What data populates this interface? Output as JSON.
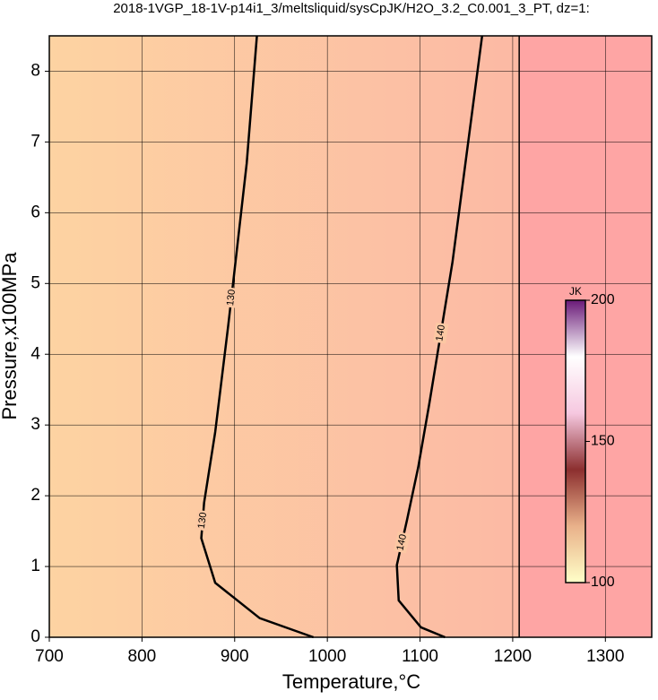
{
  "chart_data": {
    "type": "contour",
    "title": "2018-1VGP_18-1V-p14i1_3/meltsliquid/sysCpJK/H2O_3.2_C0.001_3_PT, dz=1:",
    "x_label": "Temperature,°C",
    "y_label": "Pressure,x100MPa",
    "xlim": [
      700,
      1350
    ],
    "ylim": [
      0,
      8.5
    ],
    "xticks": [
      700,
      800,
      900,
      1000,
      1100,
      1200,
      1300
    ],
    "yticks": [
      0,
      1,
      2,
      3,
      4,
      5,
      6,
      7,
      8
    ],
    "grid": true,
    "series": [
      {
        "level": 130,
        "color": "#000000",
        "x": [
          985,
          927,
          879,
          864,
          867,
          879,
          893,
          900,
          913,
          924
        ],
        "y": [
          0,
          0.27,
          0.77,
          1.4,
          1.9,
          2.9,
          4.4,
          5.2,
          6.7,
          8.5
        ]
      },
      {
        "level": 140,
        "color": "#000000",
        "x": [
          1127,
          1101,
          1077,
          1075,
          1086,
          1098,
          1110,
          1135,
          1149,
          1167
        ],
        "y": [
          0,
          0.14,
          0.52,
          1.02,
          1.66,
          2.4,
          3.3,
          5.3,
          6.7,
          8.5
        ]
      },
      {
        "color": "#000000",
        "x": [
          1207,
          1207
        ],
        "y": [
          0,
          8.5
        ]
      }
    ],
    "colorbar": {
      "label": "JK",
      "lim": [
        100,
        200
      ],
      "ticks": [
        100,
        150,
        200
      ],
      "colors": [
        "#ffffc8",
        "#e9b18a",
        "#8c2f2f",
        "#f6c8e0",
        "#ffffff",
        "#6a1a78"
      ]
    }
  }
}
